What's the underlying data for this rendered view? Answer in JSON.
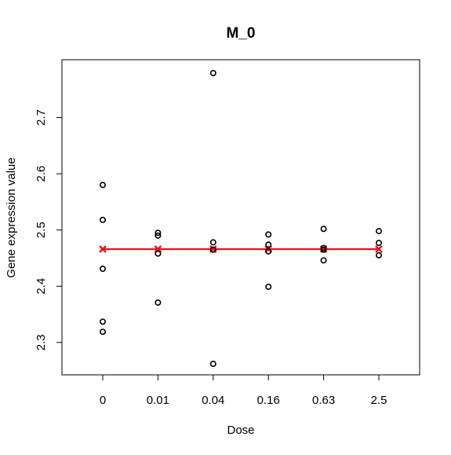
{
  "chart_data": {
    "type": "scatter",
    "title": "M_0",
    "xlabel": "Dose",
    "ylabel": "Gene expression value",
    "x_categories": [
      "0",
      "0.01",
      "0.04",
      "0.16",
      "0.63",
      "2.5"
    ],
    "yticks": [
      "2.3",
      "2.4",
      "2.5",
      "2.6",
      "2.7"
    ],
    "ylim": [
      2.24,
      2.82
    ],
    "grid": false,
    "legend": "none",
    "points": [
      {
        "x": "0",
        "y": 2.58
      },
      {
        "x": "0",
        "y": 2.518
      },
      {
        "x": "0",
        "y": 2.431
      },
      {
        "x": "0",
        "y": 2.337
      },
      {
        "x": "0",
        "y": 2.319
      },
      {
        "x": "0.01",
        "y": 2.495
      },
      {
        "x": "0.01",
        "y": 2.49
      },
      {
        "x": "0.01",
        "y": 2.458
      },
      {
        "x": "0.01",
        "y": 2.371
      },
      {
        "x": "0.04",
        "y": 2.779
      },
      {
        "x": "0.04",
        "y": 2.478
      },
      {
        "x": "0.04",
        "y": 2.465
      },
      {
        "x": "0.04",
        "y": 2.262
      },
      {
        "x": "0.16",
        "y": 2.492
      },
      {
        "x": "0.16",
        "y": 2.474
      },
      {
        "x": "0.16",
        "y": 2.462
      },
      {
        "x": "0.16",
        "y": 2.399
      },
      {
        "x": "0.63",
        "y": 2.502
      },
      {
        "x": "0.63",
        "y": 2.468
      },
      {
        "x": "0.63",
        "y": 2.465
      },
      {
        "x": "0.63",
        "y": 2.446
      },
      {
        "x": "2.5",
        "y": 2.498
      },
      {
        "x": "2.5",
        "y": 2.477
      },
      {
        "x": "2.5",
        "y": 2.455
      }
    ],
    "fit_line": {
      "color": "#e8141b",
      "values": [
        2.466,
        2.466,
        2.466,
        2.466,
        2.466,
        2.466
      ]
    },
    "point_color": "#000000"
  }
}
